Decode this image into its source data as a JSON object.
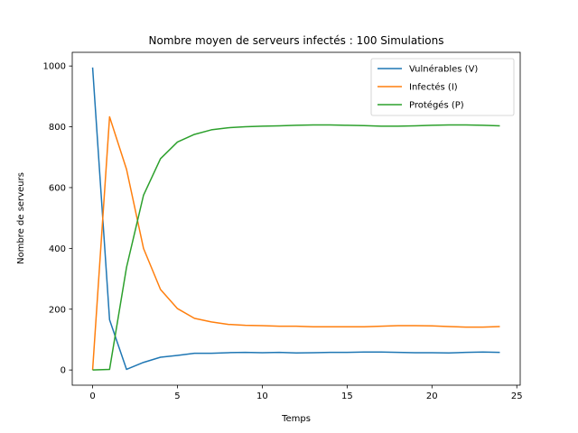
{
  "chart_data": {
    "type": "line",
    "title": "Nombre moyen de serveurs infectés : 100 Simulations",
    "xlabel": "Temps",
    "ylabel": "Nombre de serveurs",
    "xlim": [
      -1.2,
      25.2
    ],
    "ylim": [
      -50,
      1045
    ],
    "xticks": [
      0,
      5,
      10,
      15,
      20,
      25
    ],
    "yticks": [
      0,
      200,
      400,
      600,
      800,
      1000
    ],
    "grid": false,
    "legend_position": "top-right",
    "x": [
      0,
      1,
      2,
      3,
      4,
      5,
      6,
      7,
      8,
      9,
      10,
      11,
      12,
      13,
      14,
      15,
      16,
      17,
      18,
      19,
      20,
      21,
      22,
      23,
      24
    ],
    "series": [
      {
        "name": "Vulnérables (V)",
        "color": "#1f77b4",
        "values": [
          995,
          165,
          2,
          25,
          42,
          48,
          55,
          55,
          57,
          58,
          57,
          58,
          56,
          57,
          58,
          58,
          59,
          59,
          58,
          57,
          57,
          56,
          58,
          59,
          58
        ]
      },
      {
        "name": "Infectés (I)",
        "color": "#ff7f0e",
        "values": [
          0,
          833,
          660,
          400,
          265,
          202,
          170,
          158,
          150,
          147,
          146,
          144,
          144,
          142,
          142,
          142,
          142,
          144,
          146,
          146,
          145,
          143,
          141,
          141,
          143
        ]
      },
      {
        "name": "Protégés (P)",
        "color": "#2ca02c",
        "values": [
          0,
          2,
          338,
          575,
          695,
          750,
          775,
          790,
          797,
          800,
          802,
          803,
          805,
          806,
          806,
          805,
          804,
          802,
          802,
          803,
          805,
          806,
          806,
          805,
          803
        ]
      }
    ]
  }
}
